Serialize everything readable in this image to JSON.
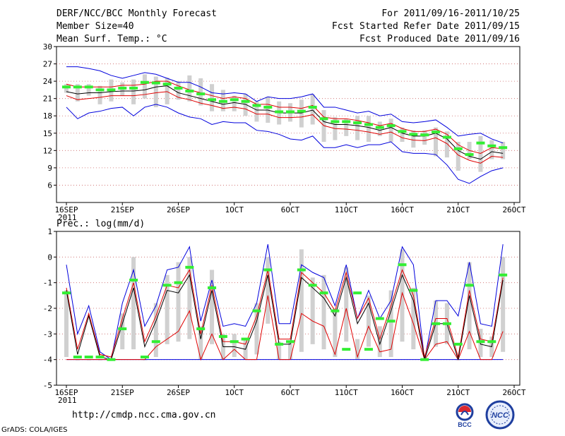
{
  "header": {
    "title": "DERF/NCC/BCC Monthly Forecast",
    "member_size": "Member Size=40",
    "variable": "Mean Surf. Temp.: °C",
    "period": "For 2011/09/16-2011/10/25",
    "start_date": "Fcst Started Refer Date 2011/09/15",
    "produced_date": "Fcst Produced Date 2011/09/16"
  },
  "footer": {
    "url": "http://cmdp.ncc.cma.gov.cn",
    "grads": "GrADS: COLA/IGES",
    "logo_left": "BCC",
    "logo_right": "NCC"
  },
  "colors": {
    "box": "#d0d0d0",
    "obs": "#33ee33",
    "mean": "#000000",
    "spread": "#e00000",
    "extreme": "#0000dd",
    "grid": "#cc6666"
  },
  "chart_data": [
    {
      "type": "box-ensemble",
      "title": "Mean Surf. Temp.: °C",
      "ylabel": "°C",
      "ylim": [
        3,
        30
      ],
      "yticks": [
        6,
        9,
        12,
        15,
        18,
        21,
        24,
        27,
        30
      ],
      "x_start": 1,
      "x_end": 40,
      "xticks": [
        {
          "pos": 1,
          "label": "16SEP"
        },
        {
          "pos": 6,
          "label": "21SEP"
        },
        {
          "pos": 11,
          "label": "26SEP"
        },
        {
          "pos": 16,
          "label": "1OCT"
        },
        {
          "pos": 21,
          "label": "6OCT"
        },
        {
          "pos": 26,
          "label": "11OCT"
        },
        {
          "pos": 31,
          "label": "16OCT"
        },
        {
          "pos": 36,
          "label": "21OCT"
        },
        {
          "pos": 41,
          "label": "26OCT"
        }
      ],
      "year_label": "2011",
      "mean": [
        22.2,
        21.8,
        22.0,
        22.0,
        22.2,
        22.3,
        22.3,
        22.5,
        23.0,
        23.2,
        22.0,
        21.5,
        21.0,
        20.5,
        20.0,
        20.3,
        20.0,
        19.0,
        19.0,
        18.5,
        18.5,
        18.5,
        19.0,
        17.0,
        16.5,
        16.5,
        16.3,
        16.0,
        15.5,
        16.0,
        15.0,
        14.5,
        14.5,
        15.0,
        14.0,
        12.0,
        11.0,
        10.5,
        11.8,
        11.5
      ],
      "upper": [
        23.5,
        23.0,
        23.0,
        23.0,
        23.0,
        23.3,
        23.3,
        23.5,
        24.0,
        24.0,
        23.2,
        22.5,
        22.0,
        21.5,
        21.0,
        21.3,
        21.0,
        20.0,
        20.0,
        19.5,
        19.5,
        19.3,
        19.8,
        17.8,
        17.5,
        17.5,
        17.2,
        16.8,
        16.3,
        16.7,
        15.8,
        15.3,
        15.3,
        15.7,
        14.8,
        13.0,
        12.0,
        11.5,
        12.5,
        12.3
      ],
      "lower": [
        21.5,
        20.8,
        21.0,
        21.2,
        21.5,
        21.5,
        21.5,
        21.7,
        22.0,
        22.2,
        21.2,
        20.8,
        20.2,
        19.8,
        19.3,
        19.5,
        19.2,
        18.3,
        18.3,
        17.7,
        17.7,
        17.8,
        18.2,
        16.3,
        15.8,
        15.7,
        15.5,
        15.2,
        14.8,
        15.2,
        14.2,
        13.8,
        13.7,
        14.2,
        13.2,
        11.2,
        10.3,
        9.8,
        11.0,
        10.8
      ],
      "max": [
        26.5,
        26.5,
        26.2,
        25.8,
        25.0,
        24.5,
        25.0,
        25.5,
        25.2,
        24.5,
        23.8,
        23.8,
        23.0,
        22.0,
        21.8,
        22.0,
        21.8,
        20.5,
        21.3,
        21.0,
        21.0,
        21.3,
        21.8,
        19.5,
        19.5,
        19.0,
        18.5,
        18.8,
        18.0,
        18.3,
        17.0,
        16.8,
        17.0,
        17.3,
        16.0,
        14.5,
        14.8,
        15.0,
        14.0,
        13.3
      ],
      "min": [
        19.5,
        17.5,
        18.5,
        18.8,
        19.3,
        19.5,
        18.0,
        19.5,
        20.0,
        19.5,
        18.5,
        17.8,
        17.5,
        16.5,
        17.0,
        16.8,
        16.8,
        15.5,
        15.3,
        14.8,
        14.0,
        13.8,
        14.5,
        12.5,
        12.5,
        13.0,
        12.5,
        13.0,
        13.0,
        13.5,
        11.8,
        11.5,
        11.5,
        11.3,
        9.5,
        7.0,
        6.3,
        7.5,
        8.5,
        9.0
      ],
      "box_high": [
        23.5,
        23.5,
        23.5,
        23.2,
        24.3,
        23.8,
        24.3,
        25.2,
        24.8,
        24.6,
        24.0,
        25.0,
        24.5,
        23.5,
        22.5,
        21.5,
        21.8,
        20.5,
        21.3,
        20.5,
        20.2,
        20.8,
        21.7,
        19.0,
        17.8,
        17.5,
        18.0,
        18.0,
        17.0,
        17.5,
        16.0,
        15.5,
        15.5,
        16.0,
        15.3,
        13.5,
        13.5,
        14.5,
        13.8,
        13.5
      ],
      "box_low": [
        22.0,
        20.5,
        21.5,
        20.0,
        20.5,
        21.5,
        20.0,
        21.0,
        19.5,
        20.0,
        20.8,
        20.5,
        19.8,
        18.8,
        18.8,
        18.8,
        18.0,
        17.0,
        16.8,
        16.5,
        17.0,
        16.0,
        16.5,
        13.5,
        13.8,
        14.5,
        13.8,
        13.5,
        14.5,
        13.5,
        13.5,
        12.5,
        13.0,
        11.0,
        10.8,
        8.5,
        10.5,
        8.3,
        10.5,
        10.5
      ],
      "obs": [
        23.0,
        23.0,
        23.0,
        22.5,
        22.5,
        22.8,
        22.8,
        23.8,
        23.7,
        23.5,
        22.8,
        22.3,
        21.8,
        20.8,
        20.5,
        20.8,
        20.5,
        19.8,
        19.5,
        18.7,
        18.7,
        18.8,
        19.5,
        17.5,
        17.0,
        17.0,
        16.8,
        16.5,
        16.0,
        16.3,
        15.3,
        14.8,
        14.7,
        15.2,
        14.3,
        12.3,
        11.3,
        13.3,
        12.8,
        12.5
      ]
    },
    {
      "type": "box-ensemble",
      "title": "Prec.: log(mm/d)",
      "ylabel": "log(mm/d)",
      "ylim": [
        -5,
        1
      ],
      "yticks": [
        -5,
        -4,
        -3,
        -2,
        -1,
        0,
        1
      ],
      "x_start": 1,
      "x_end": 40,
      "xticks": [
        {
          "pos": 1,
          "label": "16SEP"
        },
        {
          "pos": 6,
          "label": "21SEP"
        },
        {
          "pos": 11,
          "label": "26SEP"
        },
        {
          "pos": 16,
          "label": "1OCT"
        },
        {
          "pos": 21,
          "label": "6OCT"
        },
        {
          "pos": 26,
          "label": "11OCT"
        },
        {
          "pos": 31,
          "label": "16OCT"
        },
        {
          "pos": 36,
          "label": "21OCT"
        },
        {
          "pos": 41,
          "label": "26OCT"
        }
      ],
      "year_label": "2011",
      "mean": [
        -1.3,
        -3.8,
        -2.3,
        -3.9,
        -4.0,
        -2.6,
        -1.2,
        -3.5,
        -2.5,
        -1.3,
        -1.4,
        -0.7,
        -3.2,
        -1.3,
        -3.5,
        -3.5,
        -3.6,
        -2.5,
        -0.7,
        -3.4,
        -3.4,
        -0.8,
        -1.2,
        -1.6,
        -2.3,
        -0.8,
        -2.6,
        -1.8,
        -3.4,
        -2.1,
        -0.7,
        -1.7,
        -4.0,
        -2.6,
        -2.6,
        -4.0,
        -1.5,
        -3.4,
        -3.5,
        -0.9
      ],
      "upper": [
        -1.2,
        -3.6,
        -2.2,
        -3.8,
        -3.9,
        -2.4,
        -1.0,
        -3.3,
        -2.3,
        -1.1,
        -1.2,
        -0.5,
        -3.0,
        -1.1,
        -3.3,
        -3.3,
        -3.4,
        -2.3,
        -0.5,
        -3.2,
        -3.2,
        -0.6,
        -1.0,
        -1.4,
        -2.1,
        -0.6,
        -2.4,
        -1.6,
        -3.2,
        -1.9,
        -0.5,
        -1.5,
        -3.9,
        -2.4,
        -2.4,
        -3.9,
        -1.3,
        -3.2,
        -3.3,
        -0.8
      ],
      "lower": [
        -4.0,
        -4.0,
        -4.0,
        -4.0,
        -4.0,
        -4.0,
        -4.0,
        -4.0,
        -3.5,
        -3.2,
        -2.9,
        -2.1,
        -4.0,
        -3.0,
        -4.0,
        -3.6,
        -4.0,
        -4.0,
        -1.5,
        -4.0,
        -4.0,
        -2.2,
        -2.5,
        -2.7,
        -3.8,
        -2.0,
        -3.9,
        -2.7,
        -3.7,
        -3.6,
        -1.4,
        -2.6,
        -4.0,
        -3.4,
        -3.3,
        -4.0,
        -2.9,
        -4.0,
        -4.0,
        -2.9
      ],
      "max": [
        -0.3,
        -3.0,
        -1.9,
        -3.7,
        -4.0,
        -1.8,
        -0.5,
        -2.7,
        -1.9,
        -0.5,
        -0.4,
        0.4,
        -2.5,
        -0.9,
        -2.7,
        -2.6,
        -2.7,
        -1.8,
        0.5,
        -2.6,
        -2.6,
        -0.3,
        -0.6,
        -0.8,
        -1.9,
        -0.3,
        -2.4,
        -1.3,
        -2.4,
        -1.7,
        0.4,
        -0.3,
        -4.0,
        -1.7,
        -1.7,
        -2.3,
        -0.2,
        -2.6,
        -2.7,
        0.5
      ],
      "min": [
        -4.0,
        -4.0,
        -4.0,
        -4.0,
        -4.0,
        -4.0,
        -4.0,
        -4.0,
        -4.0,
        -4.0,
        -4.0,
        -4.0,
        -4.0,
        -4.0,
        -4.0,
        -4.0,
        -4.0,
        -4.0,
        -4.0,
        -4.0,
        -4.0,
        -4.0,
        -4.0,
        -4.0,
        -4.0,
        -4.0,
        -4.0,
        -4.0,
        -4.0,
        -4.0,
        -4.0,
        -4.0,
        -4.0,
        -4.0,
        -4.0,
        -4.0,
        -4.0,
        -4.0,
        -4.0,
        -4.0
      ],
      "box_high": [
        -1.3,
        -4.0,
        -4.0,
        -4.0,
        -4.0,
        -2.2,
        0.0,
        -4.0,
        -1.8,
        -0.7,
        -0.2,
        0.0,
        -2.7,
        -0.5,
        -3.0,
        -3.0,
        -3.2,
        -1.8,
        0.0,
        -3.3,
        -3.3,
        0.3,
        -0.8,
        -0.7,
        -2.0,
        -0.4,
        -3.2,
        -1.5,
        -2.7,
        -1.3,
        0.3,
        -1.2,
        -4.0,
        -1.7,
        -1.8,
        -4.0,
        -0.2,
        -2.8,
        -3.1,
        0.0
      ],
      "box_low": [
        -3.9,
        -4.0,
        -4.0,
        -4.0,
        -4.0,
        -3.6,
        -3.6,
        -4.0,
        -3.9,
        -3.4,
        -3.3,
        -3.2,
        -4.0,
        -3.4,
        -4.0,
        -3.9,
        -4.0,
        -3.8,
        -2.6,
        -4.0,
        -4.0,
        -3.7,
        -3.4,
        -3.6,
        -3.9,
        -3.3,
        -4.0,
        -3.5,
        -3.9,
        -3.9,
        -3.3,
        -3.6,
        -4.0,
        -3.5,
        -3.4,
        -4.0,
        -3.6,
        -3.9,
        -3.9,
        -3.7
      ],
      "obs": [
        -1.4,
        -3.9,
        -3.9,
        -3.9,
        -4.0,
        -2.8,
        -0.9,
        -3.9,
        -3.3,
        -1.1,
        -1.0,
        -0.4,
        -2.8,
        -1.2,
        -3.1,
        -3.3,
        -3.2,
        -2.1,
        -0.5,
        -3.4,
        -3.3,
        -0.5,
        -1.1,
        -1.4,
        -2.1,
        -3.6,
        -1.4,
        -3.6,
        -2.4,
        -2.5,
        -0.3,
        -1.3,
        -4.0,
        -2.6,
        -2.6,
        -3.4,
        -1.1,
        -3.3,
        -3.3,
        -0.7
      ]
    }
  ]
}
